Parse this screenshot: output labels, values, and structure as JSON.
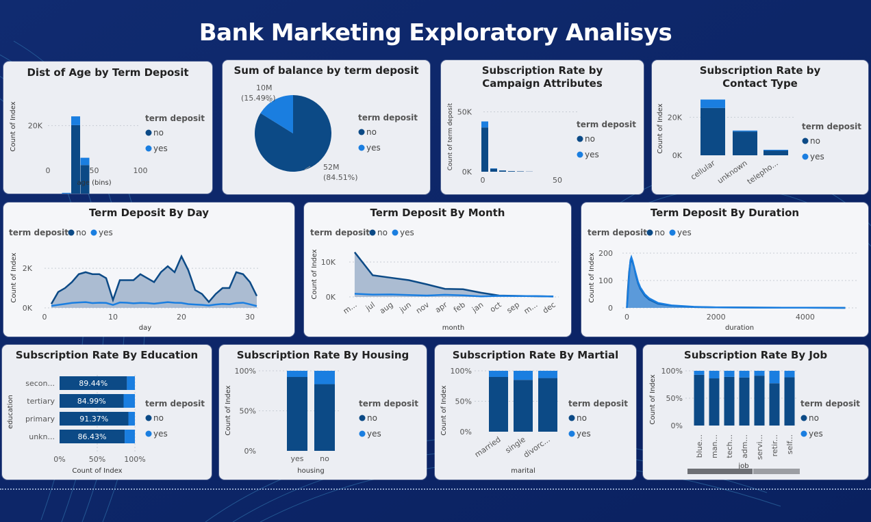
{
  "dashboard": {
    "title": "Bank Marketing Exploratory Analisys"
  },
  "colors": {
    "no": "#0c4a86",
    "yes": "#1a7ee0",
    "area_no": "#9db1cb",
    "background": "#0f2a6e"
  },
  "legend": {
    "title": "term deposit",
    "no": "no",
    "yes": "yes"
  },
  "chart_data": [
    {
      "id": "age",
      "type": "bar",
      "title": "Dist of Age by Term Deposit",
      "xlabel": "age (bins)",
      "ylabel": "Count of Index",
      "xticks": [
        "0",
        "50",
        "100"
      ],
      "yticks": [
        "0K",
        "20K"
      ],
      "xlim": [
        0,
        100
      ],
      "ylim": [
        0,
        25000
      ],
      "x": [
        20,
        30,
        40,
        50,
        60,
        70,
        80,
        90
      ],
      "series": [
        {
          "name": "no",
          "values": [
            5200,
            20100,
            11900,
            3800,
            900,
            200,
            100,
            50
          ]
        },
        {
          "name": "yes",
          "values": [
            1000,
            1800,
            1500,
            700,
            400,
            200,
            100,
            30
          ]
        }
      ],
      "legend_position": "right"
    },
    {
      "id": "balance",
      "type": "pie",
      "title": "Sum of balance by term deposit",
      "labels": [
        "no",
        "yes"
      ],
      "values": [
        52000000,
        10000000
      ],
      "value_labels": [
        "52M",
        "10M"
      ],
      "percent_labels": [
        "(84.51%)",
        "(15.49%)"
      ],
      "legend_position": "right"
    },
    {
      "id": "campaign",
      "type": "bar",
      "title": "Subscription Rate by Campaign Attributes",
      "ylabel": "Count of term deposit",
      "xticks": [
        "0",
        "50"
      ],
      "yticks": [
        "0K",
        "50K"
      ],
      "xlim": [
        0,
        60
      ],
      "ylim": [
        0,
        60000
      ],
      "x": [
        1,
        2,
        3,
        4,
        5,
        6
      ],
      "series": [
        {
          "name": "no",
          "values": [
            37000,
            2500,
            1000,
            500,
            300,
            150
          ]
        },
        {
          "name": "yes",
          "values": [
            5000,
            300,
            100,
            50,
            30,
            10
          ]
        }
      ],
      "legend_position": "right"
    },
    {
      "id": "contact",
      "type": "bar",
      "title": "Subscription Rate by Contact Type",
      "ylabel": "Count of Index",
      "categories": [
        "cellular",
        "unknown",
        "telepho..."
      ],
      "yticks": [
        "0K",
        "20K"
      ],
      "ylim": [
        0,
        32000
      ],
      "series": [
        {
          "name": "no",
          "values": [
            24900,
            12500,
            2500
          ]
        },
        {
          "name": "yes",
          "values": [
            4400,
            500,
            400
          ]
        }
      ],
      "legend_position": "right"
    },
    {
      "id": "day",
      "type": "area",
      "title": "Term Deposit By Day",
      "xlabel": "day",
      "ylabel": "Count of Index",
      "xticks": [
        "0",
        "10",
        "20",
        "30"
      ],
      "yticks": [
        "0K",
        "2K"
      ],
      "xlim": [
        0,
        31.5
      ],
      "ylim": [
        0,
        2900
      ],
      "x": [
        1,
        2,
        3,
        4,
        5,
        6,
        7,
        8,
        9,
        10,
        11,
        12,
        13,
        14,
        15,
        16,
        17,
        18,
        19,
        20,
        21,
        22,
        23,
        24,
        25,
        26,
        27,
        28,
        29,
        30,
        31
      ],
      "series": [
        {
          "name": "no",
          "values": [
            200,
            800,
            1000,
            1300,
            1700,
            1800,
            1700,
            1700,
            1500,
            400,
            1400,
            1400,
            1400,
            1700,
            1500,
            1300,
            1800,
            2100,
            1800,
            2600,
            1900,
            900,
            700,
            300,
            700,
            1000,
            1000,
            1800,
            1700,
            1300,
            600
          ]
        },
        {
          "name": "yes",
          "values": [
            100,
            150,
            200,
            250,
            270,
            290,
            240,
            260,
            250,
            150,
            270,
            260,
            230,
            250,
            240,
            210,
            250,
            290,
            260,
            250,
            190,
            170,
            150,
            120,
            170,
            200,
            180,
            240,
            260,
            180,
            90
          ]
        }
      ],
      "legend_position": "top-left"
    },
    {
      "id": "month",
      "type": "area",
      "title": "Term Deposit By Month",
      "xlabel": "month",
      "ylabel": "Count of Index",
      "categories": [
        "m...",
        "jul",
        "aug",
        "jun",
        "nov",
        "apr",
        "feb",
        "jan",
        "oct",
        "sep",
        "m...",
        "dec"
      ],
      "yticks": [
        "0K",
        "10K"
      ],
      "ylim": [
        0,
        14500
      ],
      "series": [
        {
          "name": "no",
          "values": [
            12800,
            6200,
            5500,
            4800,
            3600,
            2300,
            2200,
            1200,
            400,
            300,
            200,
            150
          ]
        },
        {
          "name": "yes",
          "values": [
            900,
            650,
            700,
            550,
            400,
            600,
            450,
            150,
            300,
            250,
            250,
            100
          ]
        }
      ],
      "legend_position": "top-left"
    },
    {
      "id": "duration",
      "type": "area",
      "title": "Term Deposit By Duration",
      "xlabel": "duration",
      "ylabel": "Count of Index",
      "xticks": [
        "0",
        "2000",
        "4000"
      ],
      "yticks": [
        "0",
        "100",
        "200"
      ],
      "xlim": [
        -100,
        5200
      ],
      "ylim": [
        0,
        220
      ],
      "x": [
        0,
        20,
        50,
        80,
        100,
        130,
        160,
        200,
        250,
        300,
        400,
        500,
        700,
        1000,
        1500,
        2000,
        3000,
        4000,
        4900
      ],
      "series": [
        {
          "name": "no",
          "values": [
            0,
            60,
            130,
            170,
            175,
            165,
            150,
            120,
            90,
            70,
            45,
            30,
            15,
            8,
            3,
            2,
            1,
            0.5,
            0
          ]
        },
        {
          "name": "yes",
          "values": [
            0,
            40,
            120,
            175,
            185,
            170,
            150,
            125,
            95,
            75,
            50,
            35,
            18,
            9,
            4,
            2,
            1,
            0.5,
            0
          ]
        }
      ],
      "legend_position": "top-left"
    },
    {
      "id": "education",
      "type": "bar",
      "title": "Subscription Rate By Education",
      "orientation": "horizontal",
      "xlabel": "Count of Index",
      "ylabel": "education",
      "categories": [
        "secon...",
        "tertiary",
        "primary",
        "unkn..."
      ],
      "xticks": [
        "0%",
        "50%",
        "100%"
      ],
      "xlim": [
        0,
        100
      ],
      "series": [
        {
          "name": "no",
          "values": [
            89.44,
            84.99,
            91.37,
            86.43
          ]
        },
        {
          "name": "yes",
          "values": [
            10.56,
            15.01,
            8.63,
            13.57
          ]
        }
      ],
      "data_labels": [
        "89.44%",
        "84.99%",
        "91.37%",
        "86.43%"
      ],
      "legend_position": "right"
    },
    {
      "id": "housing",
      "type": "bar",
      "title": "Subscription Rate By Housing",
      "xlabel": "housing",
      "ylabel": "Count of Index",
      "categories": [
        "yes",
        "no"
      ],
      "yticks": [
        "0%",
        "50%",
        "100%"
      ],
      "ylim": [
        0,
        100
      ],
      "series": [
        {
          "name": "no",
          "values": [
            92.3,
            83.3
          ]
        },
        {
          "name": "yes",
          "values": [
            7.7,
            16.7
          ]
        }
      ],
      "legend_position": "right"
    },
    {
      "id": "marital",
      "type": "bar",
      "title": "Subscription Rate By Martial",
      "xlabel": "marital",
      "ylabel": "Count of Index",
      "categories": [
        "married",
        "single",
        "divorc..."
      ],
      "yticks": [
        "0%",
        "50%",
        "100%"
      ],
      "ylim": [
        0,
        100
      ],
      "series": [
        {
          "name": "no",
          "values": [
            89.9,
            85.1,
            88.1
          ]
        },
        {
          "name": "yes",
          "values": [
            10.1,
            14.9,
            11.9
          ]
        }
      ],
      "legend_position": "right"
    },
    {
      "id": "job",
      "type": "bar",
      "title": "Subscription Rate By Job",
      "xlabel": "job",
      "ylabel": "Count of Index",
      "categories": [
        "blue...",
        "man...",
        "tech...",
        "adm...",
        "servi...",
        "retir...",
        "self..."
      ],
      "yticks": [
        "0%",
        "50%",
        "100%"
      ],
      "ylim": [
        0,
        100
      ],
      "series": [
        {
          "name": "no",
          "values": [
            92.7,
            86.2,
            88.9,
            87.8,
            91.1,
            77.2,
            88.2
          ]
        },
        {
          "name": "yes",
          "values": [
            7.3,
            13.8,
            11.1,
            12.2,
            8.9,
            22.8,
            11.8
          ]
        }
      ],
      "legend_position": "right"
    }
  ]
}
